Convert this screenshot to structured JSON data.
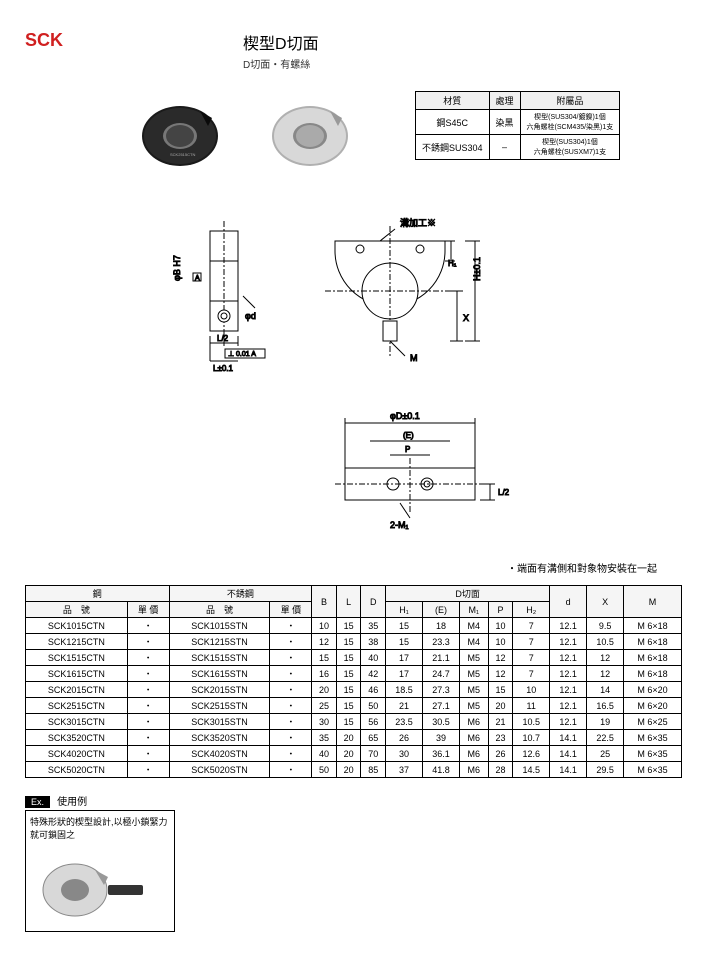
{
  "header": {
    "sck": "SCK",
    "title": "楔型D切面",
    "subtitle": "D切面・有螺絲"
  },
  "material_table": {
    "headers": [
      "材質",
      "處理",
      "附屬品"
    ],
    "rows": [
      [
        "鋼S45C",
        "染黑",
        "楔型(SUS304/鍍鎳)1個\n六角螺栓(SCM435/染黑)1支"
      ],
      [
        "不銹鋼SUS304",
        "–",
        "楔型(SUS304)1個\n六角螺栓(SUSXM7)1支"
      ]
    ]
  },
  "diagram_labels": {
    "groove": "溝加工※",
    "hpm01": "H±0.1",
    "x": "X",
    "m": "M",
    "h1": "H₁",
    "phi_d": "φd",
    "phi_b_h7": "φB H7",
    "a": "A",
    "l2": "L/2",
    "geo_tol": "⊥ 0.01 A",
    "lpm01": "L±0.1",
    "phi_d_pm": "φD±0.1",
    "e": "(E)",
    "p": "P",
    "l2_right": "L/2",
    "two_m1": "2-M₁"
  },
  "note": "・端面有溝側和對象物安裝在一起",
  "data_table": {
    "group_headers": [
      {
        "label": "鋼",
        "span": 2
      },
      {
        "label": "不銹鋼",
        "span": 2
      },
      {
        "label": "B",
        "rowspan": 2
      },
      {
        "label": "L",
        "rowspan": 2
      },
      {
        "label": "D",
        "rowspan": 2
      },
      {
        "label": "D切面",
        "span": 5
      },
      {
        "label": "d",
        "rowspan": 2
      },
      {
        "label": "X",
        "rowspan": 2
      },
      {
        "label": "M",
        "rowspan": 2
      }
    ],
    "sub_headers": [
      "品　號",
      "單 價",
      "品　號",
      "單 價",
      "H₁",
      "(E)",
      "M₁",
      "P",
      "H₂"
    ],
    "rows": [
      [
        "SCK1015CTN",
        "・",
        "SCK1015STN",
        "・",
        "10",
        "15",
        "35",
        "15",
        "18",
        "M4",
        "10",
        "7",
        "12.1",
        "9.5",
        "M 6×18"
      ],
      [
        "SCK1215CTN",
        "・",
        "SCK1215STN",
        "・",
        "12",
        "15",
        "38",
        "15",
        "23.3",
        "M4",
        "10",
        "7",
        "12.1",
        "10.5",
        "M 6×18"
      ],
      [
        "SCK1515CTN",
        "・",
        "SCK1515STN",
        "・",
        "15",
        "15",
        "40",
        "17",
        "21.1",
        "M5",
        "12",
        "7",
        "12.1",
        "12",
        "M 6×18"
      ],
      [
        "SCK1615CTN",
        "・",
        "SCK1615STN",
        "・",
        "16",
        "15",
        "42",
        "17",
        "24.7",
        "M5",
        "12",
        "7",
        "12.1",
        "12",
        "M 6×18"
      ],
      [
        "SCK2015CTN",
        "・",
        "SCK2015STN",
        "・",
        "20",
        "15",
        "46",
        "18.5",
        "27.3",
        "M5",
        "15",
        "10",
        "12.1",
        "14",
        "M 6×20"
      ],
      [
        "SCK2515CTN",
        "・",
        "SCK2515STN",
        "・",
        "25",
        "15",
        "50",
        "21",
        "27.1",
        "M5",
        "20",
        "11",
        "12.1",
        "16.5",
        "M 6×20"
      ],
      [
        "SCK3015CTN",
        "・",
        "SCK3015STN",
        "・",
        "30",
        "15",
        "56",
        "23.5",
        "30.5",
        "M6",
        "21",
        "10.5",
        "12.1",
        "19",
        "M 6×25"
      ],
      [
        "SCK3520CTN",
        "・",
        "SCK3520STN",
        "・",
        "35",
        "20",
        "65",
        "26",
        "39",
        "M6",
        "23",
        "10.7",
        "14.1",
        "22.5",
        "M 6×35"
      ],
      [
        "SCK4020CTN",
        "・",
        "SCK4020STN",
        "・",
        "40",
        "20",
        "70",
        "30",
        "36.1",
        "M6",
        "26",
        "12.6",
        "14.1",
        "25",
        "M 6×35"
      ],
      [
        "SCK5020CTN",
        "・",
        "SCK5020STN",
        "・",
        "50",
        "20",
        "85",
        "37",
        "41.8",
        "M6",
        "28",
        "14.5",
        "14.1",
        "29.5",
        "M 6×35"
      ]
    ]
  },
  "usage": {
    "ex": "Ex.",
    "title": "使用例",
    "text": "特殊形狀的楔型設計,以極小鎖緊力就可鎖固之"
  },
  "colors": {
    "red": "#d02020",
    "black_collar": "#1a1a1a",
    "silver_collar": "#c8c8c8"
  }
}
